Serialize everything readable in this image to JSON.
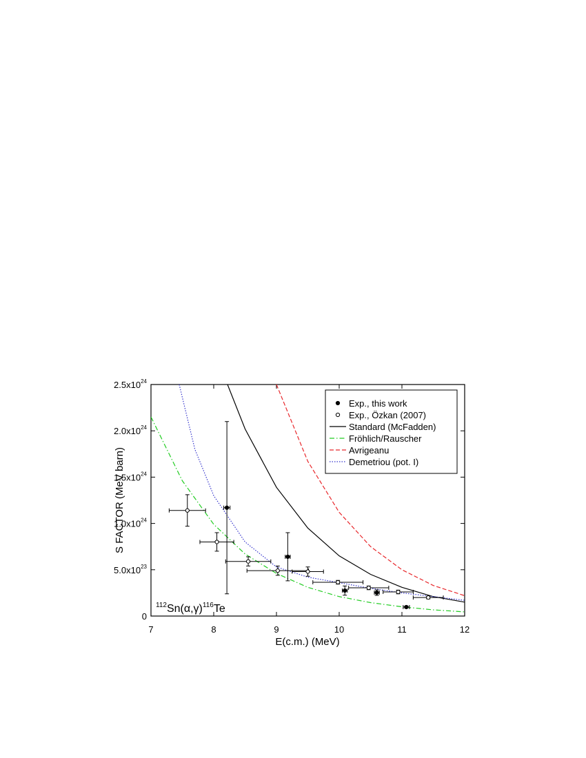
{
  "chart_data": {
    "type": "scatter",
    "xlabel": "E(c.m.) (MeV)",
    "ylabel": "S FACTOR (MeV barn)",
    "annotation": {
      "mass1": "112",
      "text1": "Sn(α,γ)",
      "mass2": "116",
      "text2": "Te"
    },
    "xlim": [
      7,
      12
    ],
    "xticks": [
      7,
      8,
      9,
      10,
      11,
      12
    ],
    "ylim": [
      0,
      2.5e+24
    ],
    "yticks": [
      0,
      {
        "value": 5e+23,
        "label": "5.0x10",
        "exponent": "23"
      },
      {
        "value": 1e+24,
        "label": "1.0x10",
        "exponent": "24"
      },
      {
        "value": 1.5e+24,
        "label": "1.5x10",
        "exponent": "24"
      },
      {
        "value": 2e+24,
        "label": "2.0x10",
        "exponent": "24"
      },
      {
        "value": 2.5e+24,
        "label": "2.5x10",
        "exponent": "24"
      }
    ],
    "legend": "upper right",
    "series": [
      {
        "name": "Exp., this work",
        "type": "scatter",
        "marker": "filled",
        "color": "#000000",
        "x": [
          8.21,
          9.18,
          10.09,
          10.6,
          11.07
        ],
        "xerr": [
          0.05,
          0.04,
          0.04,
          0.04,
          0.05
        ],
        "values": [
          1.17e+24,
          6.4e+23,
          2.75e+23,
          2.53e+23,
          9.7e+22
        ],
        "yerr": [
          9.3e+23,
          2.6e+23,
          5e+22,
          3e+22,
          1e+22
        ]
      },
      {
        "name": "Exp., Özkan (2007)",
        "type": "scatter",
        "marker": "open",
        "color": "#000000",
        "x": [
          7.58,
          8.05,
          8.55,
          9.02,
          9.5,
          9.98,
          10.47,
          10.94,
          11.42
        ],
        "xerr": [
          0.29,
          0.27,
          0.36,
          0.49,
          0.25,
          0.4,
          0.32,
          0.24,
          0.24
        ],
        "values": [
          1.14e+24,
          8e+23,
          5.9e+23,
          4.9e+23,
          4.8e+23,
          3.65e+23,
          3.05e+23,
          2.6e+23,
          2e+23
        ],
        "yerr": [
          1.7e+23,
          1e+23,
          5e+22,
          5e+22,
          5e+22,
          2e+22,
          2e+22,
          2e+22,
          1.5e+22
        ]
      },
      {
        "name": "Standard (McFadden)",
        "type": "line",
        "style": "solid",
        "color": "#000000",
        "x": [
          8.22,
          8.5,
          9,
          9.5,
          10,
          10.5,
          11,
          11.5,
          12
        ],
        "values": [
          2.5e+24,
          2.02e+24,
          1.39e+24,
          9.5e+23,
          6.5e+23,
          4.5e+23,
          3.1e+23,
          2.1e+23,
          1.5e+23
        ]
      },
      {
        "name": "Fröhlich/Rauscher",
        "type": "line",
        "style": "dashdot",
        "color": "#22cc22",
        "x": [
          7,
          7.5,
          8,
          8.5,
          9,
          9.5,
          10,
          10.5,
          11,
          11.5,
          12
        ],
        "values": [
          2.15e+24,
          1.46e+24,
          9.9e+23,
          6.7e+23,
          4.6e+23,
          3.1e+23,
          2.1e+23,
          1.45e+23,
          1e+23,
          6.7e+22,
          4.5e+22
        ]
      },
      {
        "name": "Avrigeanu",
        "type": "line",
        "style": "dashed",
        "color": "#e8262a",
        "x": [
          9,
          9.5,
          10,
          10.5,
          11,
          11.5,
          12
        ],
        "values": [
          2.5e+24,
          1.67e+24,
          1.12e+24,
          7.5e+23,
          5e+23,
          3.3e+23,
          2.2e+23
        ]
      },
      {
        "name": "Demetriou (pot. I)",
        "type": "line",
        "style": "dotted",
        "color": "#3333cc",
        "x": [
          7.45,
          7.7,
          8,
          8.5,
          9,
          9.5,
          10,
          10.5,
          11,
          11.5,
          12
        ],
        "values": [
          2.5e+24,
          1.8e+24,
          1.3e+24,
          8e+23,
          5.3e+23,
          4.2e+23,
          3.6e+23,
          3e+23,
          2.5e+23,
          2.1e+23,
          1.7e+23
        ]
      }
    ]
  }
}
